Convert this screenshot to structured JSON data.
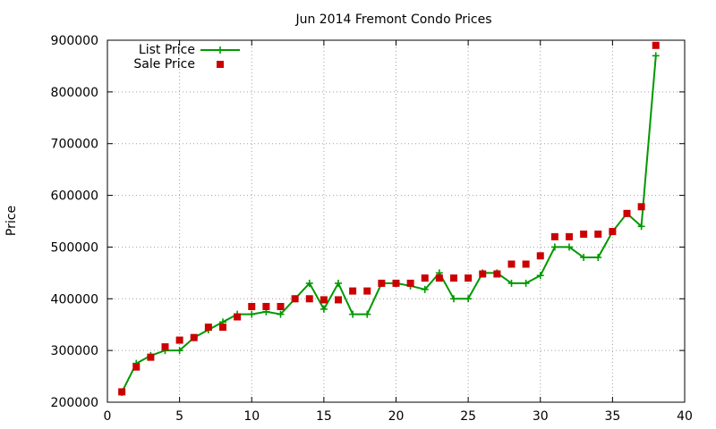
{
  "chart_data": {
    "type": "line",
    "title": "Jun 2014 Fremont Condo Prices",
    "xlabel": "",
    "ylabel": "Price",
    "xlim": [
      0,
      40
    ],
    "ylim": [
      200000,
      900000
    ],
    "xticks": [
      "0",
      "5",
      "10",
      "15",
      "20",
      "25",
      "30",
      "35",
      "40"
    ],
    "yticks": [
      "200000",
      "300000",
      "400000",
      "500000",
      "600000",
      "700000",
      "800000",
      "900000"
    ],
    "grid": true,
    "legend_position": "top-left",
    "series": [
      {
        "name": "List Price",
        "style": "line-with-plus-markers",
        "color": "#009900",
        "x": [
          1,
          2,
          3,
          4,
          5,
          6,
          7,
          8,
          9,
          10,
          11,
          12,
          13,
          14,
          15,
          16,
          17,
          18,
          19,
          20,
          21,
          22,
          23,
          24,
          25,
          26,
          27,
          28,
          29,
          30,
          31,
          32,
          33,
          34,
          35,
          36,
          37,
          38
        ],
        "values": [
          219000,
          275000,
          290000,
          300000,
          300000,
          325000,
          340000,
          355000,
          370000,
          370000,
          375000,
          370000,
          400000,
          430000,
          380000,
          430000,
          370000,
          370000,
          430000,
          430000,
          425000,
          418000,
          450000,
          400000,
          400000,
          450000,
          450000,
          430000,
          430000,
          445000,
          500000,
          500000,
          480000,
          480000,
          530000,
          565000,
          540000,
          870000
        ]
      },
      {
        "name": "Sale Price",
        "style": "square-markers",
        "color": "#cc0000",
        "x": [
          1,
          2,
          3,
          4,
          5,
          6,
          7,
          8,
          9,
          10,
          11,
          12,
          13,
          14,
          15,
          16,
          17,
          18,
          19,
          20,
          21,
          22,
          23,
          24,
          25,
          26,
          27,
          28,
          29,
          30,
          31,
          32,
          33,
          34,
          35,
          36,
          37,
          38
        ],
        "values": [
          220000,
          268000,
          287000,
          307000,
          320000,
          325000,
          345000,
          345000,
          365000,
          385000,
          385000,
          385000,
          400000,
          400000,
          398000,
          398000,
          415000,
          415000,
          430000,
          430000,
          430000,
          440000,
          440000,
          440000,
          440000,
          448000,
          448000,
          467000,
          467000,
          483000,
          520000,
          520000,
          525000,
          525000,
          530000,
          565000,
          578000,
          890000
        ]
      }
    ]
  }
}
